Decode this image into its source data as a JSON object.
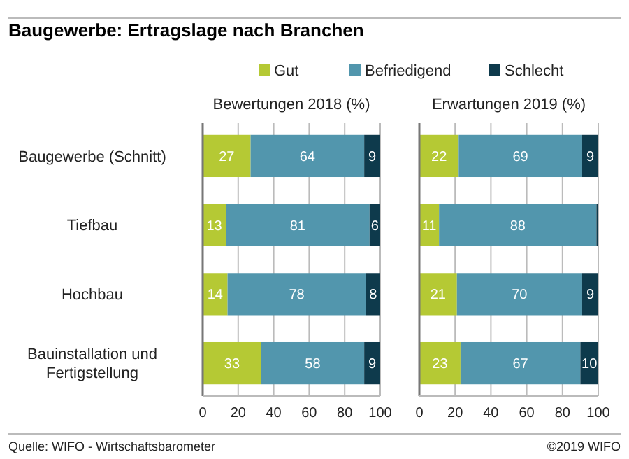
{
  "chart_data": [
    {
      "type": "bar",
      "orientation": "horizontal",
      "stacked": true,
      "title": "Baugewerbe: Ertragslage nach Branchen",
      "subtitle": "Bewertungen 2018 (%)",
      "categories": [
        "Baugewerbe (Schnitt)",
        "Tiefbau",
        "Hochbau",
        "Bauinstallation und Fertigstellung"
      ],
      "series": [
        {
          "name": "Gut",
          "color": "#b5c934",
          "values": [
            27,
            13,
            14,
            33
          ]
        },
        {
          "name": "Befriedigend",
          "color": "#5296ad",
          "values": [
            64,
            81,
            78,
            58
          ]
        },
        {
          "name": "Schlecht",
          "color": "#0e3a4c",
          "values": [
            9,
            6,
            8,
            9
          ]
        }
      ],
      "xlim": [
        0,
        100
      ],
      "xticks": [
        0,
        20,
        40,
        60,
        80,
        100
      ],
      "grid": "x",
      "legend": "top",
      "data_labels": true,
      "annotations": [
        "Quelle: WIFO - Wirtschaftsbarometer",
        "©2019 WIFO"
      ]
    },
    {
      "type": "bar",
      "orientation": "horizontal",
      "stacked": true,
      "subtitle": "Erwartungen 2019 (%)",
      "categories": [
        null,
        null,
        null,
        null
      ],
      "series": [
        {
          "color": "#b5c934",
          "values": [
            22,
            11,
            21,
            23
          ],
          "value_labels": [
            "22",
            "11",
            "21",
            "23"
          ]
        },
        {
          "color": "#5296ad",
          "values": [
            69,
            88,
            70,
            67
          ],
          "value_labels": [
            "69",
            "88",
            "70",
            "67"
          ]
        },
        {
          "color": "#0e3a4c",
          "values": [
            9,
            1,
            9,
            10
          ],
          "value_labels": [
            "9",
            null,
            "9",
            "10"
          ]
        }
      ],
      "xlim": [
        0,
        100
      ],
      "xticks": [
        0,
        20,
        40,
        60,
        80,
        100
      ],
      "grid": "x",
      "tick_labels": "x"
    }
  ]
}
